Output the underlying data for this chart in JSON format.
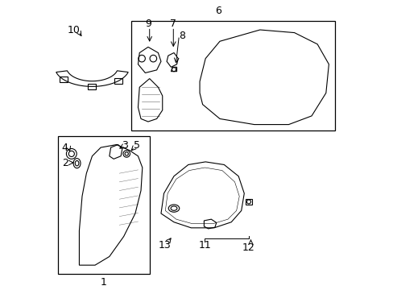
{
  "bg_color": "#ffffff",
  "line_color": "#000000",
  "label_fontsize": 9
}
